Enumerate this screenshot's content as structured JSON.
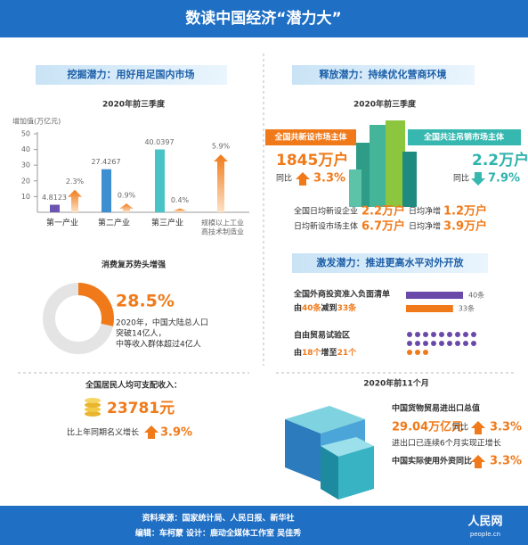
{
  "header": {
    "title": "数读中国经济“潜力大”"
  },
  "left": {
    "heading": "挖掘潜力：用好用足国内市场",
    "period": "2020年前三季度",
    "chart": {
      "y_label": "增加值(万亿元)",
      "ylim": [
        0,
        50
      ],
      "yticks": [
        10,
        20,
        30,
        40,
        50
      ],
      "categories": [
        [
          "第一产业"
        ],
        [
          "第二产业"
        ],
        [
          "第三产业"
        ],
        [
          "规模以上工业",
          "高技术制造业"
        ]
      ],
      "values": [
        4.8123,
        27.4267,
        40.0397,
        null
      ],
      "growth": [
        2.3,
        0.9,
        0.4,
        5.9
      ],
      "growth_labels": [
        "2.3%",
        "0.9%",
        "0.4%",
        "5.9%"
      ]
    },
    "consumption": {
      "title": "消费复苏势头增强",
      "share": 28.5,
      "share_label": "28.5%",
      "notes": [
        "2020年，中国大陆总人口",
        "突破14亿人，",
        "中等收入群体超过4亿人"
      ]
    },
    "income": {
      "title": "全国居民人均可支配收入：",
      "amount": "23781元",
      "growth_text": "比上年同期名义增长",
      "growth": "3.9%"
    }
  },
  "right": {
    "heading": "释放潜力：持续优化营商环境",
    "period": "2020年前三季度",
    "new": {
      "label": "全国共新设市场主体",
      "amount": "1845万户",
      "yoy": "同比",
      "growth": "3.3%"
    },
    "cancel": {
      "label": "全国共注吊销市场主体",
      "amount": "2.2万户",
      "yoy": "同比",
      "growth": "7.9%"
    },
    "daily": [
      [
        "全国日均新设企业",
        "2.2万户",
        "日均净增",
        "1.2万户"
      ],
      [
        "日均新设市场主体",
        "6.7万户",
        "日均净增",
        "3.9万户"
      ]
    ],
    "heading2": "激发潜力：推进更高水平对外开放",
    "negative_list": {
      "title": "全国外商投资准入负面清单",
      "words": [
        "由",
        "减到"
      ],
      "values": [
        40,
        33
      ],
      "value_labels": [
        "40条",
        "33条"
      ]
    },
    "ftz": {
      "title": "自由贸易试验区",
      "words": [
        "由",
        "增至"
      ],
      "values": [
        18,
        21
      ],
      "value_labels": [
        "18个",
        "21个"
      ]
    },
    "period2": "2020年前11个月",
    "trade": {
      "title": "中国货物贸易进出口总值",
      "amount": "29.04万亿元",
      "yoy": "同比",
      "growth": "3.3%",
      "note": "进出口已连续6个月实现正增长"
    },
    "fdi": {
      "title": "中国实际使用外资同比",
      "growth": "3.3%"
    }
  },
  "footer": {
    "source": "资料来源：国家统计局、人民日报、新华社",
    "credits": "编辑：车柯蒙    设计：鹿动全媒体工作室 吴佳秀",
    "logo": "人民网",
    "logo_sub": "people.cn"
  }
}
